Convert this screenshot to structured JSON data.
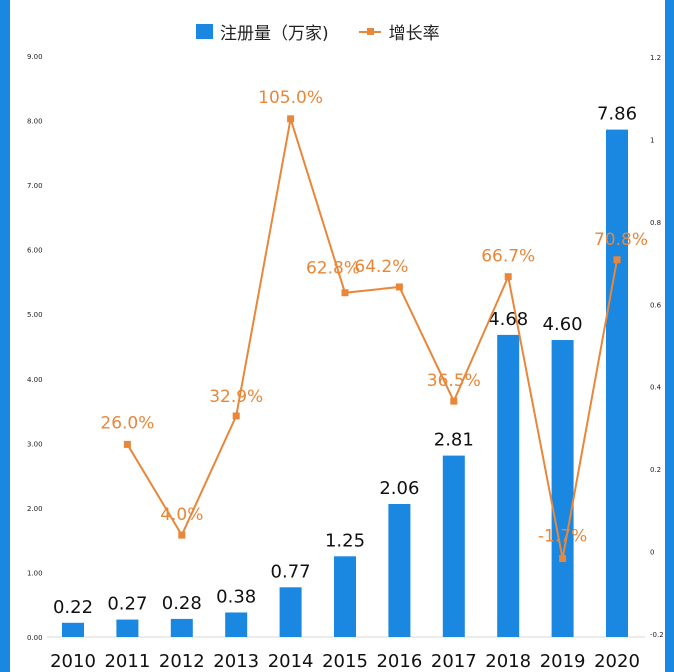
{
  "chart_data": {
    "type": "bar+line",
    "title": "",
    "categories": [
      "2010",
      "2011",
      "2012",
      "2013",
      "2014",
      "2015",
      "2016",
      "2017",
      "2018",
      "2019",
      "2020"
    ],
    "series": [
      {
        "name": "注册量（万家)",
        "type": "bar",
        "axis": "left",
        "color": "#1a87e0",
        "values": [
          0.22,
          0.27,
          0.28,
          0.38,
          0.77,
          1.25,
          2.06,
          2.81,
          4.68,
          4.6,
          7.86
        ],
        "labels": [
          "0.22",
          "0.27",
          "0.28",
          "0.38",
          "0.77",
          "1.25",
          "2.06",
          "2.81",
          "4.68",
          "4.60",
          "7.86"
        ]
      },
      {
        "name": "增长率",
        "type": "line",
        "axis": "right",
        "color": "#e8873a",
        "values": [
          null,
          0.26,
          0.04,
          0.329,
          1.05,
          0.628,
          0.642,
          0.365,
          0.667,
          -0.017,
          0.708
        ],
        "labels": [
          "",
          "26.0%",
          "4.0%",
          "32.9%",
          "105.0%",
          "62.8%",
          "64.2%",
          "36.5%",
          "66.7%",
          "-1.7%",
          "70.8%"
        ]
      }
    ],
    "y_left": {
      "range": [
        0,
        9
      ],
      "ticks": [
        "0.00",
        "1.00",
        "2.00",
        "3.00",
        "4.00",
        "5.00",
        "6.00",
        "7.00",
        "8.00",
        "9.00"
      ]
    },
    "y_right": {
      "range": [
        -0.2,
        1.2
      ],
      "ticks": [
        "-0.2",
        "0",
        "0.2",
        "0.4",
        "0.6",
        "0.8",
        "1",
        "1.2"
      ]
    },
    "legend": {
      "position": "top-center",
      "entries": [
        "注册量（万家)",
        "增长率"
      ]
    },
    "grid": false
  }
}
